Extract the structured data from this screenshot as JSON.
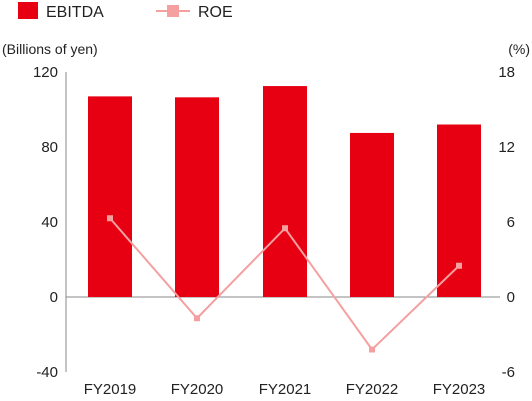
{
  "chart_data": {
    "type": "bar+line",
    "categories": [
      "FY2019",
      "FY2020",
      "FY2021",
      "FY2022",
      "FY2023"
    ],
    "series": [
      {
        "name": "EBITDA",
        "type": "bar",
        "axis": "left",
        "color": "#e60012",
        "values": [
          107,
          106.5,
          112.5,
          87.5,
          92
        ]
      },
      {
        "name": "ROE",
        "type": "line",
        "axis": "right",
        "color": "#f4a0a0",
        "values": [
          6.3,
          -1.7,
          5.5,
          -4.2,
          2.5
        ]
      }
    ],
    "left_axis": {
      "unit_label": "(Billions of yen)",
      "ylim": [
        -40,
        120
      ],
      "ticks": [
        "120",
        "80",
        "40",
        "0",
        "-40"
      ],
      "tick_values": [
        120,
        80,
        40,
        0,
        -40
      ]
    },
    "right_axis": {
      "unit_label": "(%)",
      "ylim": [
        -6,
        18
      ],
      "ticks": [
        "18",
        "12",
        "6",
        "0",
        "-6"
      ],
      "tick_values": [
        18,
        12,
        6,
        0,
        -6
      ]
    },
    "grid": false,
    "legend_position": "top-left"
  }
}
